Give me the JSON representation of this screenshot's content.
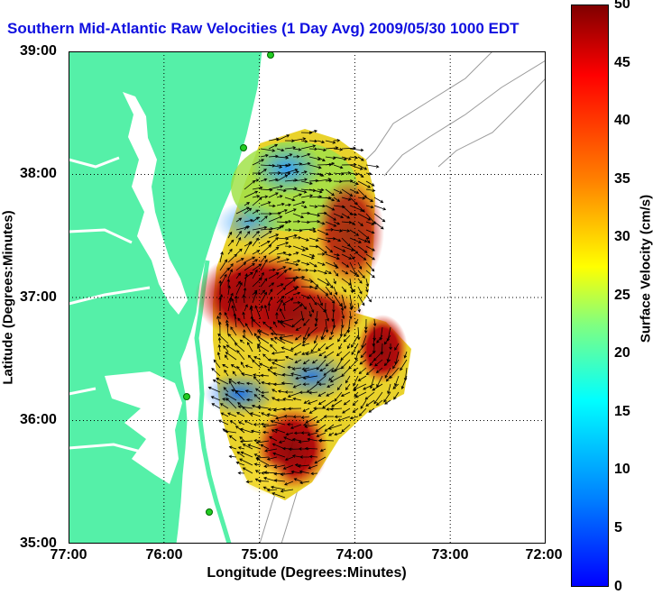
{
  "title": "Southern Mid-Atlantic Raw Velocities (1 Day Avg) 2009/05/30 1000 EDT",
  "xaxis": {
    "label": "Longitude (Degrees:Minutes)",
    "ticks": [
      "77:00",
      "76:00",
      "75:00",
      "74:00",
      "73:00",
      "72:00"
    ]
  },
  "yaxis": {
    "label": "Latitude (Degrees:Minutes)",
    "ticks": [
      "39:00",
      "38:00",
      "37:00",
      "36:00",
      "35:00"
    ]
  },
  "colorbar": {
    "label": "Surface Velocity (cm/s)",
    "ticks": [
      "50",
      "45",
      "40",
      "35",
      "30",
      "25",
      "20",
      "15",
      "10",
      "5",
      "0"
    ],
    "range": [
      0,
      50
    ],
    "colormap": "jet"
  },
  "colors": {
    "land": "#55f0a8",
    "water": "#ffffff",
    "title": "#1010e0",
    "grid": "#000000",
    "bathymetry": "#9a9a9a",
    "station": "#22cc22"
  }
}
